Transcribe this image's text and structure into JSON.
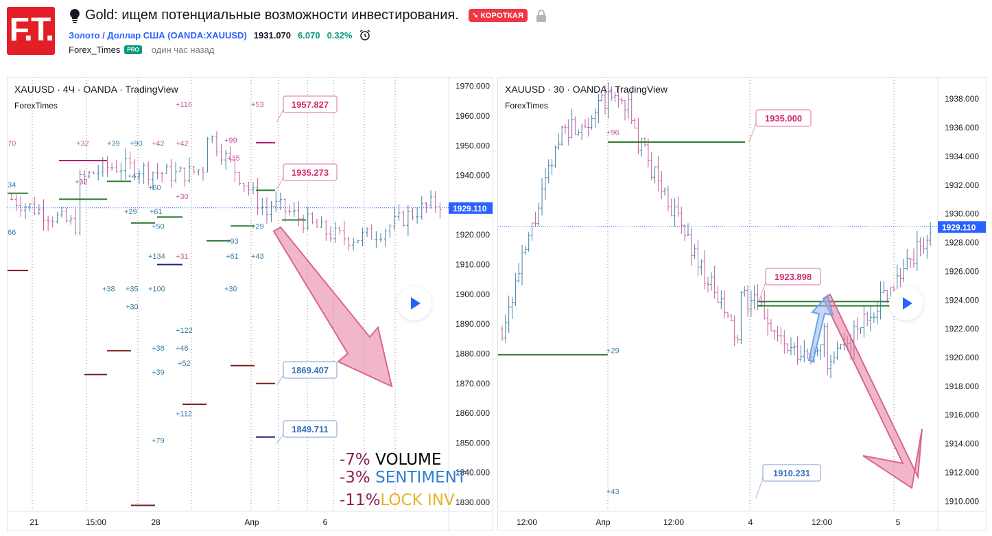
{
  "header": {
    "logo_text": "F.T.",
    "idea_title": "Gold: ищем потенциальные возможности инвестирования.",
    "direction_badge": "КОРОТКАЯ",
    "symbol_full": "Золото / Доллар США (OANDA:XAUUSD)",
    "last_price": "1931.070",
    "change_abs": "6.070",
    "change_pct": "0.32%",
    "author": "Forex_Times",
    "author_badge": "PRO",
    "published": "один час назад"
  },
  "colors": {
    "brand": "#e41e26",
    "short_badge": "#f23645",
    "link": "#2962ff",
    "positive": "#089981",
    "last_price_tag": "#2962ff"
  },
  "chart_data": [
    {
      "type": "bar",
      "symbol_label": "XAUUSD · 4Ч · OANDA · TradingView",
      "publisher_label": "ForexTimes",
      "y_ticks": [
        "1970.000",
        "1960.000",
        "1950.000",
        "1940.000",
        "1930.000",
        "1920.000",
        "1910.000",
        "1900.000",
        "1890.000",
        "1880.000",
        "1870.000",
        "1860.000",
        "1850.000",
        "1840.000",
        "1830.000"
      ],
      "x_ticks": [
        "21",
        "15:00",
        "28",
        "Апр",
        "6"
      ],
      "last_price": "1929.110",
      "ylim": [
        1827,
        1972
      ],
      "callouts": [
        {
          "text": "1957.827",
          "color": "#d12b6f"
        },
        {
          "text": "1935.273",
          "color": "#d12b6f"
        },
        {
          "text": "1869.407",
          "color": "#3a6fb5"
        },
        {
          "text": "1849.711",
          "color": "#3a6fb5"
        }
      ],
      "stats": [
        {
          "pct": "-7%",
          "label": "VOLUME",
          "pct_color": "#8e1d53",
          "label_color": "#000000"
        },
        {
          "pct": "-3%",
          "label": "SENTIMENT",
          "pct_color": "#8e1d53",
          "label_color": "#2f80d1"
        },
        {
          "pct": "-11%",
          "label": "LOCK INV",
          "pct_color": "#8e1d53",
          "label_color": "#e6b422"
        }
      ]
    },
    {
      "type": "bar",
      "symbol_label": "XAUUSD · 30 · OANDA · TradingView",
      "publisher_label": "ForexTimes",
      "y_ticks": [
        "1938.000",
        "1936.000",
        "1934.000",
        "1932.000",
        "1930.000",
        "1928.000",
        "1926.000",
        "1924.000",
        "1922.000",
        "1920.000",
        "1918.000",
        "1916.000",
        "1914.000",
        "1912.000",
        "1910.000"
      ],
      "x_ticks": [
        "12:00",
        "Апр",
        "12:00",
        "4",
        "12:00",
        "5"
      ],
      "last_price": "1929.110",
      "ylim": [
        1909.3,
        1939.3
      ],
      "callouts": [
        {
          "text": "1935.000",
          "color": "#d12b6f"
        },
        {
          "text": "1923.898",
          "color": "#d12b6f"
        },
        {
          "text": "1910.231",
          "color": "#3a6fb5"
        }
      ]
    }
  ]
}
